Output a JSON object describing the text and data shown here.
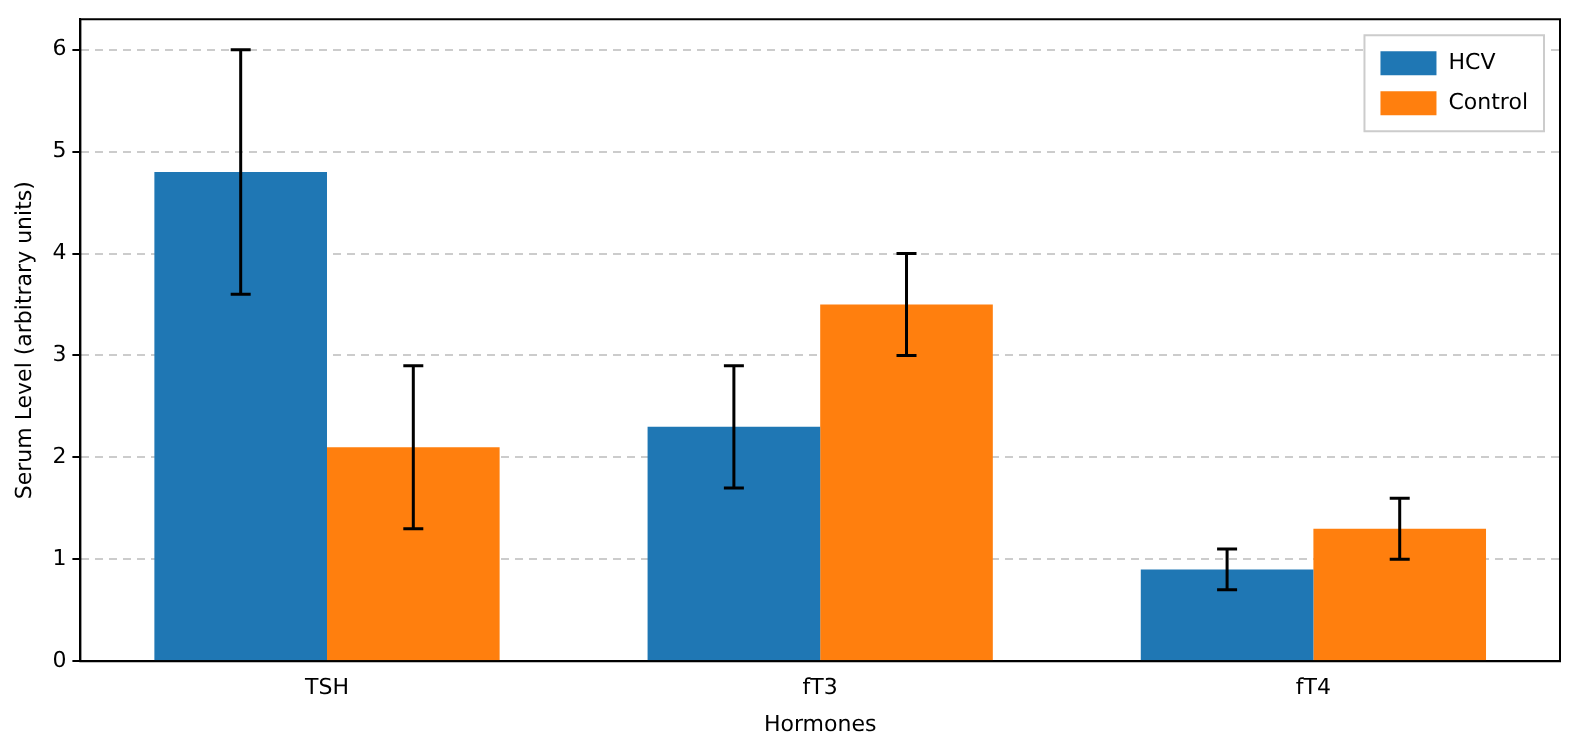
{
  "chart_data": {
    "type": "bar",
    "xlabel": "Hormones",
    "ylabel": "Serum Level (arbitrary units)",
    "categories": [
      "TSH",
      "fT3",
      "fT4"
    ],
    "series": [
      {
        "name": "HCV",
        "color": "#1f77b4",
        "values": [
          4.8,
          2.3,
          0.9
        ],
        "errors": [
          1.2,
          0.6,
          0.2
        ]
      },
      {
        "name": "Control",
        "color": "#ff7f0e",
        "values": [
          2.1,
          3.5,
          1.3
        ],
        "errors": [
          0.8,
          0.5,
          0.3
        ]
      }
    ],
    "ylim": [
      0,
      6.3
    ],
    "yticks": [
      0,
      1,
      2,
      3,
      4,
      5,
      6
    ],
    "grid": "y",
    "legend": "top right"
  }
}
